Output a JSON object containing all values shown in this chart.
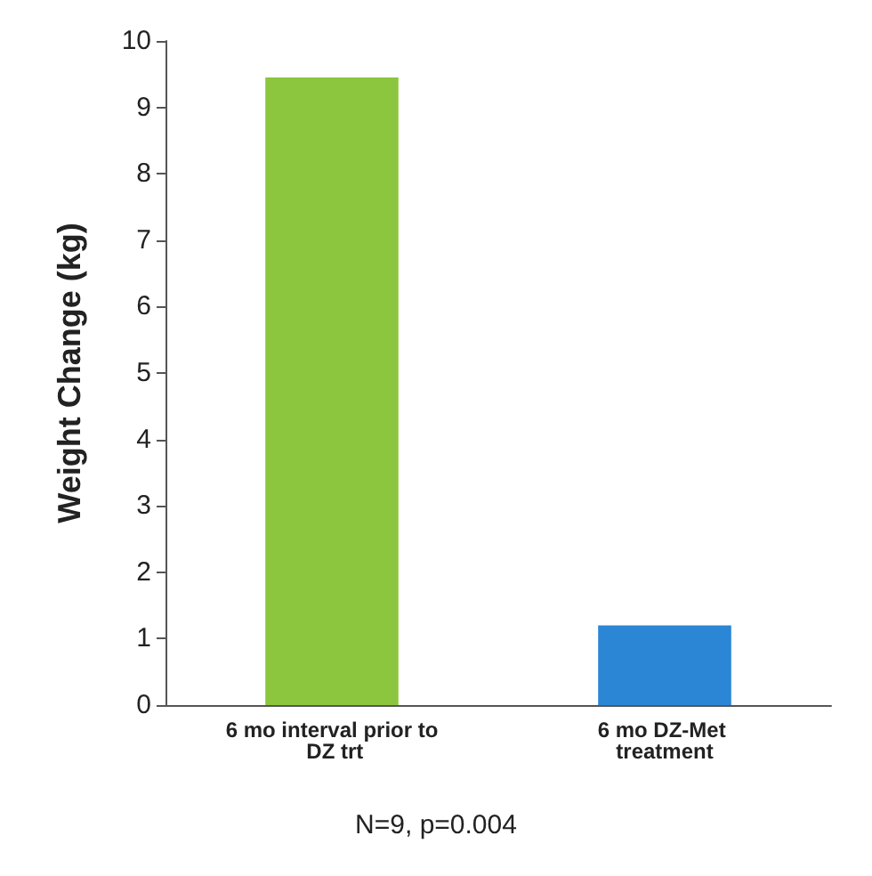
{
  "chart_data": {
    "type": "bar",
    "ylabel": "Weight Change (kg)",
    "categories": [
      "6 mo interval prior to DZ trt",
      "6 mo DZ-Met treatment"
    ],
    "values": [
      9.45,
      1.2
    ],
    "colors": [
      "#8cc63f",
      "#2b86d6"
    ],
    "ylim": [
      0,
      10
    ],
    "yticks": [
      0,
      1,
      2,
      3,
      4,
      5,
      6,
      7,
      8,
      9,
      10
    ],
    "grid": false,
    "annotations": [
      "N=9, p=0.004"
    ]
  }
}
